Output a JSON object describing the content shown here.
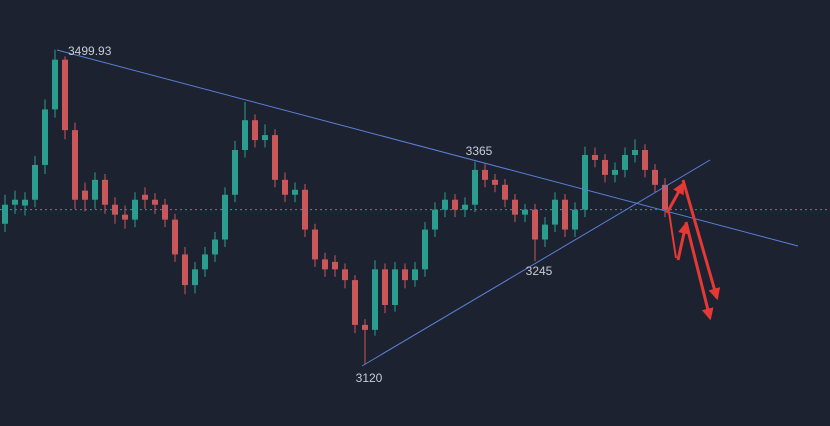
{
  "chart_data": {
    "type": "candlestick",
    "open": [
      3290,
      3313,
      3312,
      3319,
      3361,
      3428,
      3488,
      3403,
      3330,
      3319,
      3343,
      3313,
      3301,
      3295,
      3325,
      3319,
      3313,
      3295,
      3253,
      3216,
      3235,
      3253,
      3271,
      3325,
      3379,
      3415,
      3391,
      3397,
      3343,
      3325,
      3331,
      3283,
      3247,
      3244,
      3235,
      3222,
      3168,
      3162,
      3235,
      3192,
      3235,
      3222,
      3235,
      3283,
      3307,
      3319,
      3307,
      3313,
      3355,
      3343,
      3337,
      3319,
      3301,
      3307,
      3271,
      3289,
      3319,
      3283,
      3307,
      3373,
      3367,
      3349,
      3355,
      3373,
      3379,
      3355,
      3337
    ],
    "high": [
      3325,
      3330,
      3328,
      3372,
      3440,
      3499.93,
      3492,
      3412,
      3340,
      3352,
      3350,
      3322,
      3312,
      3328,
      3334,
      3327,
      3320,
      3302,
      3262,
      3244,
      3262,
      3280,
      3334,
      3390,
      3437,
      3422,
      3410,
      3404,
      3352,
      3340,
      3338,
      3290,
      3255,
      3252,
      3242,
      3228,
      3175,
      3246,
      3242,
      3244,
      3242,
      3244,
      3292,
      3316,
      3328,
      3326,
      3322,
      3365,
      3362,
      3350,
      3344,
      3326,
      3314,
      3314,
      3298,
      3328,
      3326,
      3316,
      3383,
      3382,
      3374,
      3364,
      3382,
      3392,
      3386,
      3362,
      3345
    ],
    "low": [
      3280,
      3302,
      3300,
      3310,
      3350,
      3418,
      3392,
      3308,
      3305,
      3308,
      3302,
      3290,
      3284,
      3286,
      3308,
      3302,
      3286,
      3244,
      3205,
      3206,
      3226,
      3244,
      3262,
      3316,
      3370,
      3382,
      3382,
      3334,
      3316,
      3316,
      3274,
      3238,
      3226,
      3226,
      3212,
      3158,
      3120,
      3155,
      3182,
      3184,
      3212,
      3214,
      3226,
      3274,
      3298,
      3298,
      3298,
      3304,
      3334,
      3328,
      3310,
      3292,
      3292,
      3245,
      3262,
      3280,
      3274,
      3274,
      3298,
      3358,
      3340,
      3340,
      3346,
      3364,
      3346,
      3328,
      3298
    ],
    "close": [
      3313,
      3319,
      3319,
      3361,
      3428,
      3488,
      3403,
      3319,
      3319,
      3343,
      3313,
      3301,
      3295,
      3319,
      3319,
      3313,
      3295,
      3253,
      3216,
      3235,
      3253,
      3271,
      3325,
      3379,
      3415,
      3391,
      3397,
      3343,
      3325,
      3331,
      3283,
      3247,
      3235,
      3235,
      3222,
      3168,
      3162,
      3235,
      3192,
      3235,
      3222,
      3235,
      3283,
      3307,
      3319,
      3307,
      3313,
      3355,
      3343,
      3337,
      3319,
      3301,
      3307,
      3271,
      3289,
      3319,
      3283,
      3307,
      3373,
      3367,
      3349,
      3355,
      3373,
      3379,
      3355,
      3337,
      3307
    ],
    "ylim": [
      3046,
      3560
    ],
    "up_color": "#2a9d8f",
    "down_color": "#c9575a"
  }
}
